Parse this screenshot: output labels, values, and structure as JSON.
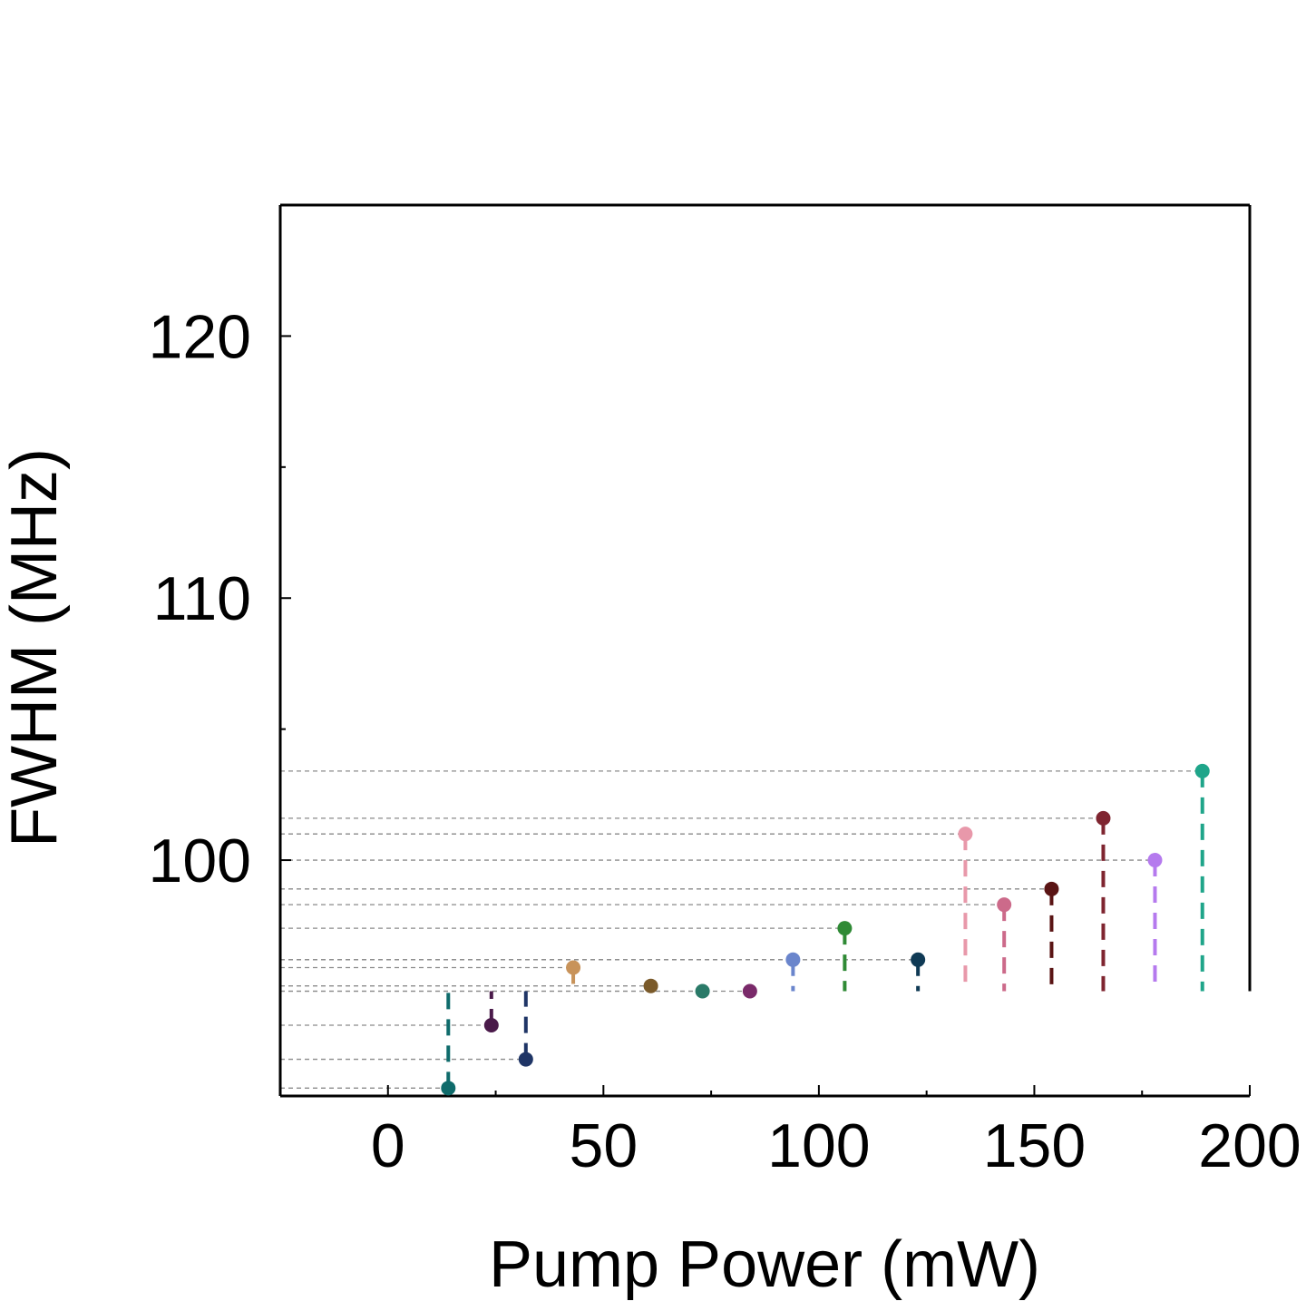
{
  "chart_data": {
    "type": "scatter",
    "title": "",
    "xlabel": "Pump Power (mW)",
    "ylabel": "FWHM (MHz)",
    "xlim": [
      -25,
      200
    ],
    "ylim": [
      91,
      125
    ],
    "x_ticks": [
      0,
      50,
      100,
      150,
      200
    ],
    "y_ticks": [
      100,
      110,
      120
    ],
    "grid": false,
    "stem_baseline_y": 95,
    "points": [
      {
        "x": 14,
        "y": 91.3,
        "color": "#0f6b6b"
      },
      {
        "x": 24,
        "y": 93.7,
        "color": "#4a1a4a"
      },
      {
        "x": 32,
        "y": 92.4,
        "color": "#1f3566"
      },
      {
        "x": 43,
        "y": 95.9,
        "color": "#c8935a"
      },
      {
        "x": 61,
        "y": 95.2,
        "color": "#7a5a2a"
      },
      {
        "x": 73,
        "y": 95.0,
        "color": "#2a7a68"
      },
      {
        "x": 84,
        "y": 95.0,
        "color": "#7a2a6a"
      },
      {
        "x": 94,
        "y": 96.2,
        "color": "#6a85cc"
      },
      {
        "x": 106,
        "y": 97.4,
        "color": "#2f8a35"
      },
      {
        "x": 123,
        "y": 96.2,
        "color": "#0f3a55"
      },
      {
        "x": 134,
        "y": 101.0,
        "color": "#e898aa"
      },
      {
        "x": 143,
        "y": 98.3,
        "color": "#cc6a8a"
      },
      {
        "x": 154,
        "y": 98.9,
        "color": "#5a1414"
      },
      {
        "x": 166,
        "y": 101.6,
        "color": "#7f2530"
      },
      {
        "x": 178,
        "y": 100.0,
        "color": "#b57aee"
      },
      {
        "x": 189,
        "y": 103.4,
        "color": "#1fa58a"
      }
    ]
  }
}
